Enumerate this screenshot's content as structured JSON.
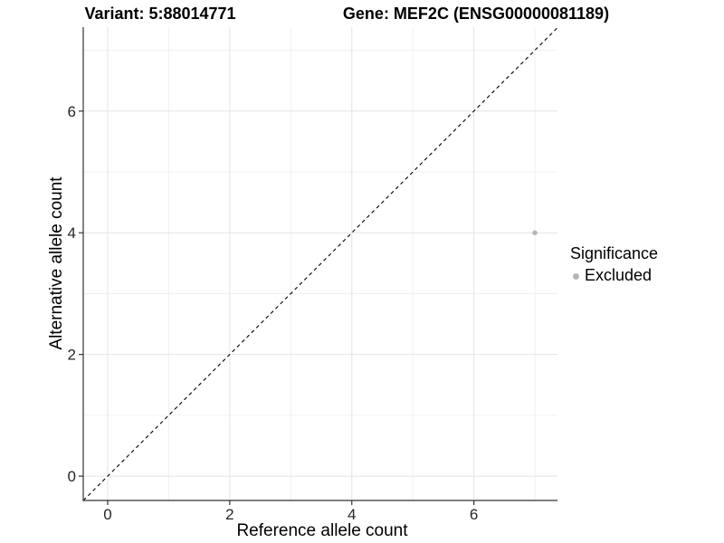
{
  "chart_data": {
    "type": "scatter",
    "title_left": "Variant: 5:88014771",
    "title_right": "Gene: MEF2C (ENSG00000081189)",
    "xlabel": "Reference allele count",
    "ylabel": "Alternative allele count",
    "xlim": [
      -0.4,
      7.37
    ],
    "ylim": [
      -0.4,
      7.38
    ],
    "x_ticks": [
      0,
      2,
      4,
      6
    ],
    "y_ticks": [
      0,
      2,
      4,
      6
    ],
    "x_tick_labels": [
      "0",
      "2",
      "4",
      "6"
    ],
    "y_tick_labels": [
      "0",
      "2",
      "4",
      "6"
    ],
    "x_minor": [
      1,
      3,
      5,
      7
    ],
    "y_minor": [
      1,
      3,
      5,
      7
    ],
    "grid": "major+minor",
    "series": [
      {
        "name": "Excluded",
        "color": "#b5b5b5",
        "points": [
          {
            "x": 7,
            "y": 4
          }
        ]
      }
    ],
    "reference_line": {
      "kind": "identity y=x",
      "from": -0.4,
      "to": 7.37,
      "style": "dashed",
      "color": "#000000"
    },
    "legend": {
      "title": "Significance",
      "position": "right",
      "entries": [
        {
          "label": "Excluded",
          "color": "#b5b5b5"
        }
      ]
    },
    "colors": {
      "axis_line": "#333333",
      "tick_mark": "#333333",
      "tick_label": "#262626",
      "grid_major": "#e4e4e4",
      "grid_minor": "#f0f0f0",
      "background": "#ffffff"
    }
  }
}
